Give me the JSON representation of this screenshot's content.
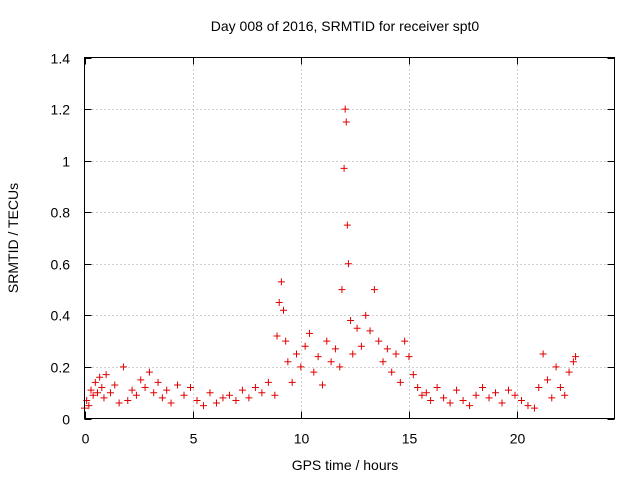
{
  "chart_data": {
    "type": "scatter",
    "title": "Day 008 of 2016, SRMTID for receiver spt0",
    "xlabel": "GPS time / hours",
    "ylabel": "SRMTID / TECUs",
    "xlim": [
      0,
      24.5
    ],
    "ylim": [
      0,
      1.4
    ],
    "xticks": [
      0,
      5,
      10,
      15,
      20
    ],
    "xtick_labels": [
      "0",
      "5",
      "10",
      "15",
      "20"
    ],
    "yticks": [
      0,
      0.2,
      0.4,
      0.6,
      0.8,
      1,
      1.2,
      1.4
    ],
    "ytick_labels": [
      "0",
      "0.2",
      "0.4",
      "0.6",
      "0.8",
      "1",
      "1.2",
      "1.4"
    ],
    "grid": true,
    "marker": "+",
    "series": [
      {
        "name": "SRMTID",
        "color": "#e00000",
        "x": [
          0.0,
          0.1,
          0.2,
          0.3,
          0.4,
          0.5,
          0.6,
          0.7,
          0.8,
          0.9,
          1.0,
          1.2,
          1.4,
          1.6,
          1.8,
          2.0,
          2.2,
          2.4,
          2.6,
          2.8,
          3.0,
          3.2,
          3.4,
          3.6,
          3.8,
          4.0,
          4.3,
          4.6,
          4.9,
          5.2,
          5.5,
          5.8,
          6.1,
          6.4,
          6.7,
          7.0,
          7.3,
          7.6,
          7.9,
          8.2,
          8.5,
          8.8,
          8.9,
          9.0,
          9.1,
          9.2,
          9.3,
          9.4,
          9.6,
          9.8,
          10.0,
          10.2,
          10.4,
          10.6,
          10.8,
          11.0,
          11.2,
          11.4,
          11.6,
          11.8,
          11.9,
          12.0,
          12.05,
          12.1,
          12.15,
          12.2,
          12.3,
          12.4,
          12.6,
          12.8,
          13.0,
          13.2,
          13.4,
          13.6,
          13.8,
          14.0,
          14.2,
          14.4,
          14.6,
          14.8,
          15.0,
          15.2,
          15.4,
          15.6,
          15.8,
          16.0,
          16.3,
          16.6,
          16.9,
          17.2,
          17.5,
          17.8,
          18.1,
          18.4,
          18.7,
          19.0,
          19.3,
          19.6,
          19.9,
          20.2,
          20.5,
          20.8,
          21.0,
          21.2,
          21.4,
          21.6,
          21.8,
          22.0,
          22.2,
          22.4,
          22.6,
          22.7
        ],
        "y": [
          0.04,
          0.07,
          0.05,
          0.11,
          0.09,
          0.14,
          0.1,
          0.16,
          0.12,
          0.08,
          0.17,
          0.1,
          0.13,
          0.06,
          0.2,
          0.07,
          0.11,
          0.09,
          0.15,
          0.12,
          0.18,
          0.1,
          0.14,
          0.08,
          0.11,
          0.06,
          0.13,
          0.09,
          0.12,
          0.07,
          0.05,
          0.1,
          0.06,
          0.08,
          0.09,
          0.07,
          0.11,
          0.08,
          0.12,
          0.1,
          0.14,
          0.09,
          0.32,
          0.45,
          0.53,
          0.42,
          0.3,
          0.22,
          0.14,
          0.25,
          0.2,
          0.28,
          0.33,
          0.18,
          0.24,
          0.13,
          0.3,
          0.22,
          0.27,
          0.2,
          0.5,
          0.97,
          1.2,
          1.15,
          0.75,
          0.6,
          0.38,
          0.25,
          0.35,
          0.28,
          0.4,
          0.34,
          0.5,
          0.3,
          0.22,
          0.27,
          0.18,
          0.25,
          0.14,
          0.3,
          0.24,
          0.17,
          0.12,
          0.09,
          0.1,
          0.07,
          0.12,
          0.08,
          0.06,
          0.11,
          0.07,
          0.05,
          0.09,
          0.12,
          0.08,
          0.1,
          0.06,
          0.11,
          0.09,
          0.07,
          0.05,
          0.04,
          0.12,
          0.25,
          0.15,
          0.08,
          0.2,
          0.12,
          0.09,
          0.18,
          0.22,
          0.24
        ]
      }
    ]
  }
}
